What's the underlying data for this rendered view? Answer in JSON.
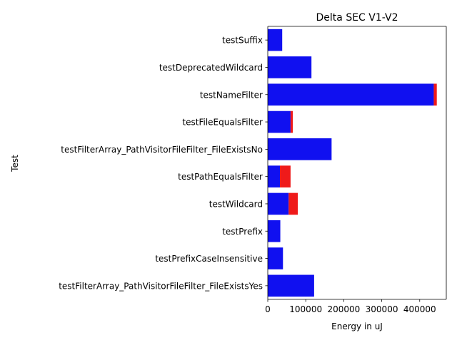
{
  "chart_data": {
    "type": "bar",
    "orientation": "horizontal",
    "stacked": true,
    "title": "Delta SEC V1-V2",
    "xlabel": "Energy in uJ",
    "ylabel": "Test",
    "categories": [
      "testSuffix",
      "testDeprecatedWildcard",
      "testNameFilter",
      "testFileEqualsFilter",
      "testFilterArray_PathVisitorFileFilter_FileExistsNo",
      "testPathEqualsFilter",
      "testWildcard",
      "testPrefix",
      "testPrefixCaseInsensitive",
      "testFilterArray_PathVisitorFileFilter_FileExistsYes"
    ],
    "series": [
      {
        "color": "#1010f0",
        "values": [
          38000,
          115000,
          437000,
          60000,
          168000,
          32000,
          55000,
          33000,
          40000,
          122000
        ]
      },
      {
        "color": "#ef1a1a",
        "values": [
          0,
          0,
          8000,
          6000,
          0,
          28000,
          24000,
          0,
          0,
          0
        ]
      }
    ],
    "xlim": [
      0,
      470000
    ],
    "xticks": [
      0,
      100000,
      200000,
      300000,
      400000
    ],
    "xtick_labels": [
      "0",
      "100000",
      "200000",
      "300000",
      "400000"
    ],
    "grid": false,
    "legend": "none"
  }
}
